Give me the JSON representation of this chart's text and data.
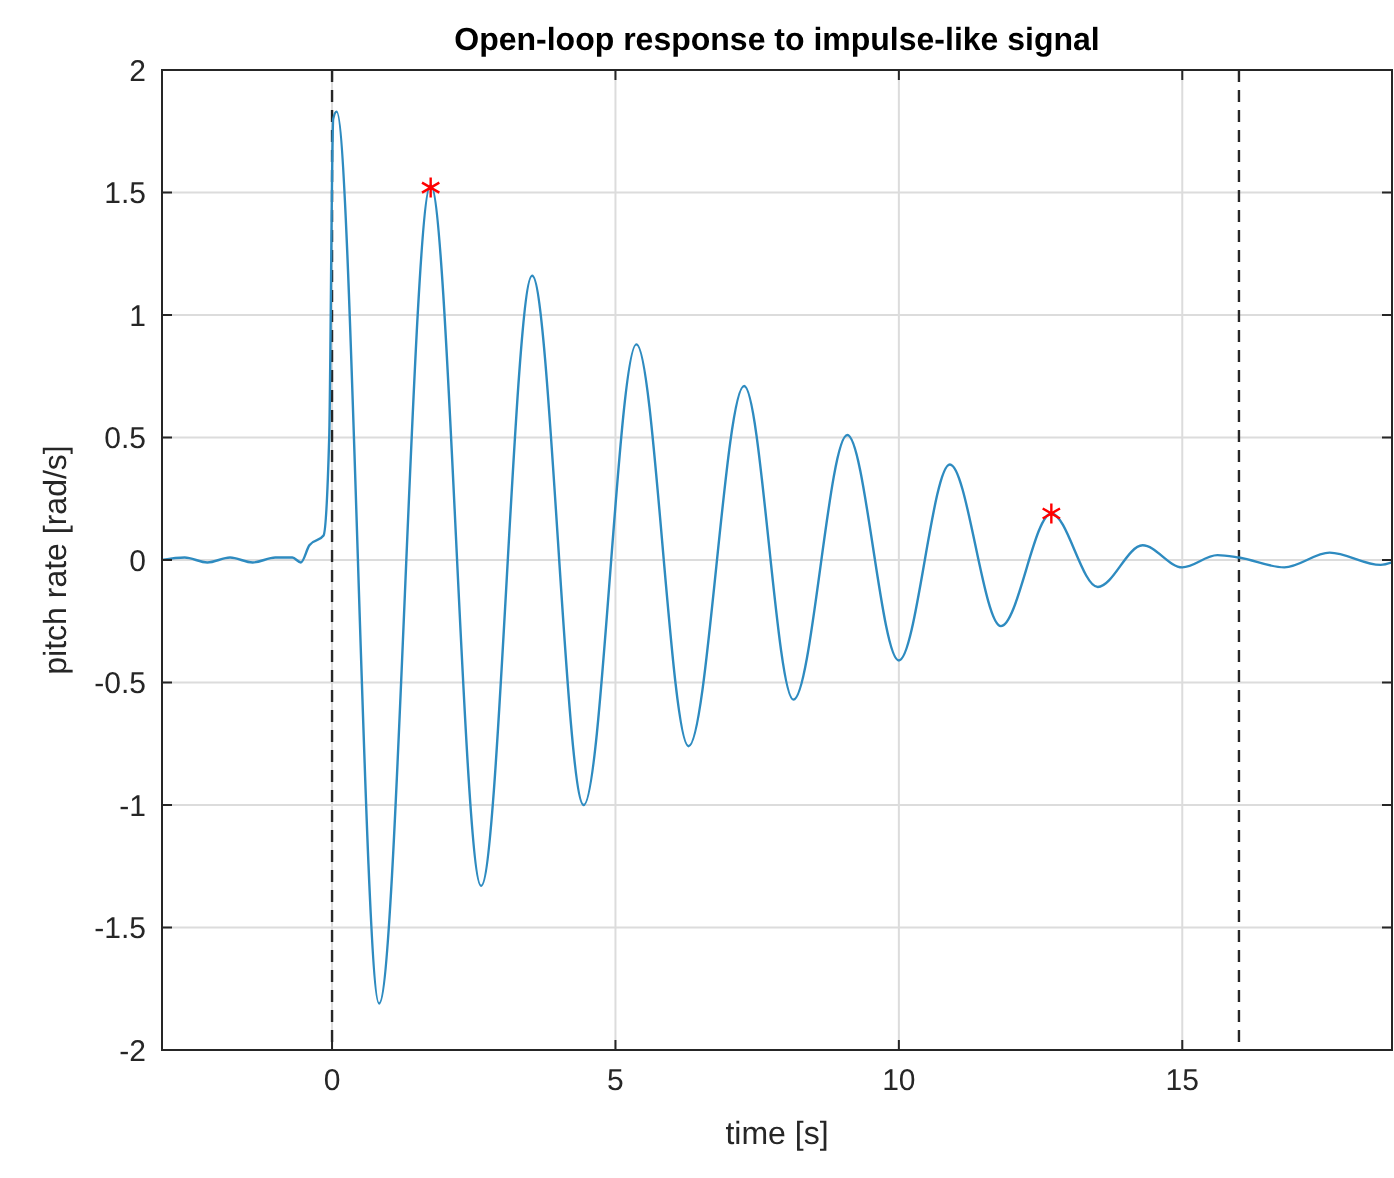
{
  "chart_data": {
    "type": "line",
    "title": "Open-loop response to impulse-like signal",
    "xlabel": "time [s]",
    "ylabel": "pitch rate [rad/s]",
    "xlim": [
      -3,
      18.7
    ],
    "xticks": [
      0,
      5,
      10,
      15
    ],
    "ylim": [
      -2,
      2
    ],
    "yticks": [
      -2,
      -1.5,
      -1,
      -0.5,
      0,
      0.5,
      1,
      1.5,
      2
    ],
    "grid": true,
    "series": [
      {
        "color": "#2e8bc0",
        "marker": "none",
        "line_style": "solid",
        "x": [
          -3,
          -2.6,
          -2.2,
          -1.8,
          -1.4,
          -1.0,
          -0.7,
          -0.55,
          -0.4,
          -0.15,
          -0.05,
          0.02,
          0.08,
          0.83,
          1.74,
          2.63,
          3.53,
          4.44,
          5.37,
          6.29,
          7.27,
          8.14,
          9.09,
          10.0,
          10.9,
          11.8,
          12.69,
          13.51,
          14.3,
          15.0,
          15.62,
          16.0,
          16.8,
          17.6,
          18.5,
          18.7
        ],
        "values": [
          0,
          0.01,
          -0.01,
          0.01,
          -0.01,
          0.01,
          0.01,
          -0.01,
          0.06,
          0.1,
          0.5,
          1.8,
          1.83,
          -1.81,
          1.53,
          -1.33,
          1.16,
          -1.0,
          0.88,
          -0.76,
          0.71,
          -0.57,
          0.51,
          -0.41,
          0.39,
          -0.27,
          0.19,
          -0.11,
          0.06,
          -0.03,
          0.02,
          0.01,
          -0.03,
          0.03,
          -0.02,
          -0.01
        ]
      },
      {
        "type": "scatter",
        "color": "#ff0000",
        "marker": "cross",
        "x": [
          1.74,
          12.69
        ],
        "values": [
          1.52,
          0.19
        ]
      }
    ],
    "ref_lines": [
      {
        "axis": "x",
        "value": 0,
        "color": "#262626",
        "line_style": "dashed"
      },
      {
        "axis": "x",
        "value": 16,
        "color": "#262626",
        "line_style": "dashed"
      }
    ]
  }
}
